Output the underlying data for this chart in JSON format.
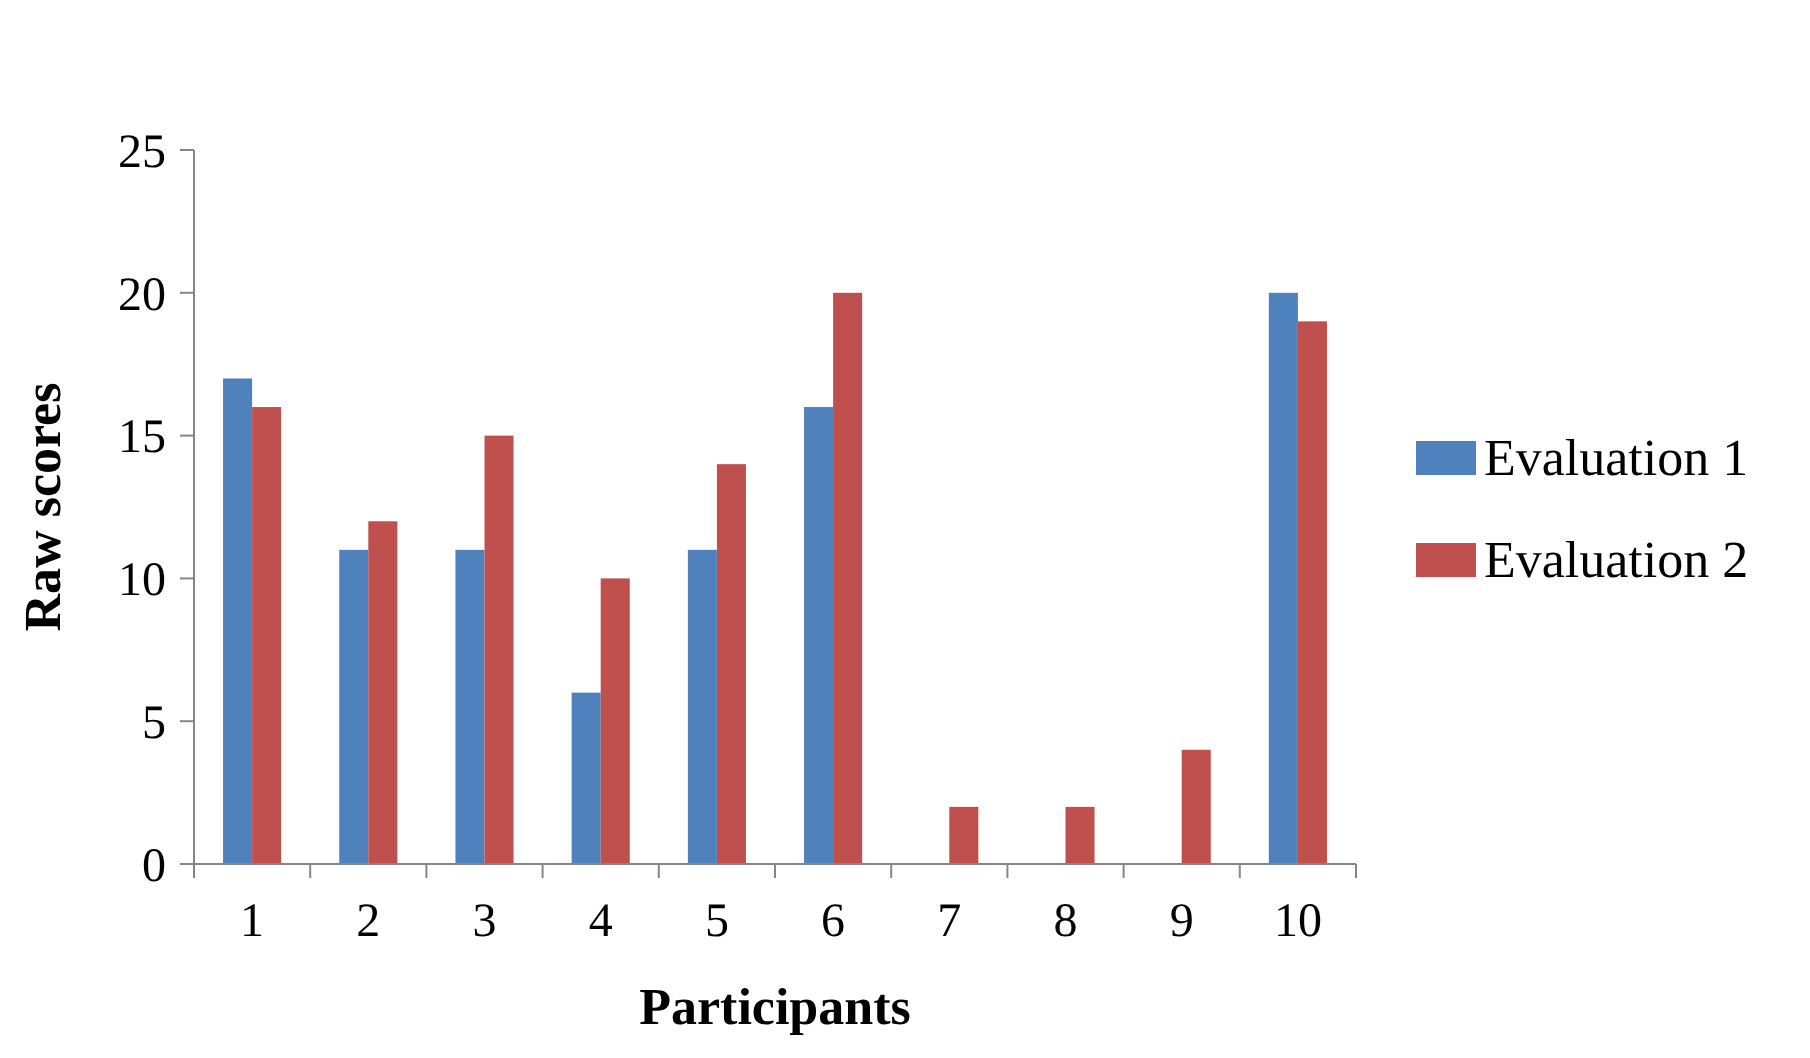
{
  "chart_data": {
    "type": "bar",
    "categories": [
      "1",
      "2",
      "3",
      "4",
      "5",
      "6",
      "7",
      "8",
      "9",
      "10"
    ],
    "series": [
      {
        "name": "Evaluation 1",
        "color": "#4f81bd",
        "values": [
          17,
          11,
          11,
          6,
          11,
          16,
          0,
          0,
          0,
          20
        ]
      },
      {
        "name": "Evaluation 2",
        "color": "#c0504d",
        "values": [
          16,
          12,
          15,
          10,
          14,
          20,
          2,
          2,
          4,
          19
        ]
      }
    ],
    "xlabel": "Participants",
    "ylabel": "Raw scores",
    "ylim": [
      0,
      25
    ],
    "yticks": [
      0,
      5,
      10,
      15,
      20,
      25
    ],
    "grid": false,
    "legend": "right"
  }
}
